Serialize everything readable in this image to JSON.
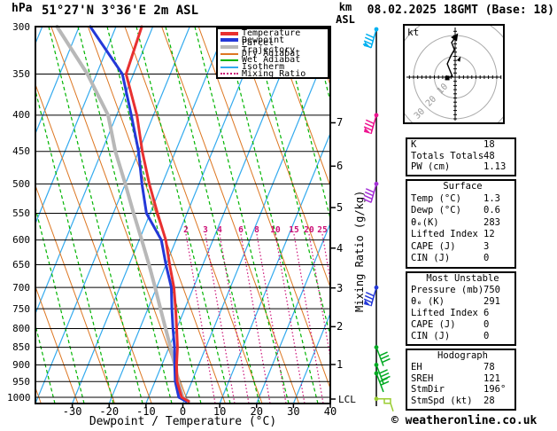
{
  "header": {
    "pressure_unit": "hPa",
    "title": "51°27'N 3°36'E 2m ASL",
    "alt_axis_line1": "km",
    "alt_axis_line2": "ASL",
    "datetime": "08.02.2025 18GMT (Base: 18)"
  },
  "footer": {
    "credit": "© weatheronline.co.uk"
  },
  "colors": {
    "temperature": "#e83030",
    "dewpoint": "#2438d8",
    "parcel": "#b8b8b8",
    "dry_adiabat": "#dd7722",
    "wet_adiabat": "#00b400",
    "isotherm": "#33aaee",
    "mixing_ratio": "#cc1177",
    "grid": "#000000",
    "hodograph_rings": "#aaaaaa"
  },
  "legend": {
    "items": [
      {
        "label": "Temperature",
        "color": "#e83030",
        "style": "thick"
      },
      {
        "label": "Dewpoint",
        "color": "#2438d8",
        "style": "thick"
      },
      {
        "label": "Parcel Trajectory",
        "color": "#b8b8b8",
        "style": "thick"
      },
      {
        "label": "Dry Adiabat",
        "color": "#dd7722",
        "style": "thin"
      },
      {
        "label": "Wet Adiabat",
        "color": "#00b400",
        "style": "thin"
      },
      {
        "label": "Isotherm",
        "color": "#33aaee",
        "style": "thin"
      },
      {
        "label": "Mixing Ratio",
        "color": "#cc1177",
        "style": "dots"
      }
    ]
  },
  "chart_data": {
    "type": "line",
    "title": "51°27'N 3°36'E 2m ASL skew-T log-P sounding",
    "x_axis": {
      "label": "Dewpoint / Temperature (°C)",
      "range": [
        -40,
        40
      ],
      "ticks": [
        -30,
        -20,
        -10,
        0,
        10,
        20,
        30,
        40
      ]
    },
    "y_axis": {
      "label": "hPa",
      "scale": "log",
      "ticks": [
        300,
        350,
        400,
        450,
        500,
        550,
        600,
        650,
        700,
        750,
        800,
        850,
        900,
        950,
        1000
      ]
    },
    "y2_axis": {
      "label": "Mixing Ratio (g/kg)",
      "km_ticks": [
        7,
        6,
        5,
        4,
        3,
        2,
        1
      ],
      "lcl_label": "LCL"
    },
    "mixing_ratio_values": [
      2,
      3,
      4,
      6,
      8,
      10,
      15,
      20,
      25
    ],
    "series": [
      {
        "name": "Temperature",
        "color": "#e83030",
        "width": 3,
        "pressure": [
          300,
          350,
          400,
          450,
          500,
          550,
          600,
          650,
          700,
          750,
          800,
          850,
          900,
          950,
          1000,
          1013
        ],
        "temp_c": [
          -53,
          -52,
          -44.5,
          -39,
          -33.5,
          -28,
          -22.8,
          -19,
          -15.3,
          -12.5,
          -10,
          -7.7,
          -6,
          -4,
          -1,
          1.3
        ]
      },
      {
        "name": "Dewpoint",
        "color": "#2438d8",
        "width": 3,
        "pressure": [
          300,
          350,
          400,
          450,
          500,
          550,
          600,
          650,
          700,
          750,
          800,
          850,
          900,
          950,
          1000,
          1013
        ],
        "temp_c": [
          -67,
          -53,
          -46,
          -40,
          -35.5,
          -31,
          -24,
          -20,
          -16,
          -13.5,
          -11,
          -8.5,
          -6.5,
          -4.5,
          -1.8,
          0.6
        ]
      },
      {
        "name": "Parcel Trajectory",
        "color": "#b8b8b8",
        "width": 4,
        "pressure": [
          300,
          350,
          400,
          450,
          500,
          550,
          600,
          650,
          700,
          750,
          800,
          850,
          900,
          950,
          1000,
          1013
        ],
        "temp_c": [
          -76,
          -62.5,
          -52.3,
          -46.3,
          -40,
          -34.5,
          -29.3,
          -24.6,
          -20.4,
          -16.6,
          -13,
          -9.6,
          -6.5,
          -3.7,
          -0.7,
          1.3
        ]
      }
    ]
  },
  "wind_barbs": [
    {
      "level_hpa": 300,
      "color": "#00b0f0",
      "feathers": 4,
      "side": "left",
      "pennant": true
    },
    {
      "level_hpa": 400,
      "color": "#ee1490",
      "feathers": 3,
      "side": "left",
      "pennant": true
    },
    {
      "level_hpa": 500,
      "color": "#a431d6",
      "feathers": 4,
      "side": "left",
      "pennant": false
    },
    {
      "level_hpa": 700,
      "color": "#2438d8",
      "feathers": 3,
      "side": "left",
      "pennant": true
    },
    {
      "level_hpa": 850,
      "color": "#00aa22",
      "feathers": 3,
      "side": "right",
      "pennant": false
    },
    {
      "level_hpa": 900,
      "color": "#00aa22",
      "feathers": 3,
      "side": "right",
      "pennant": false
    },
    {
      "level_hpa": 925,
      "color": "#00aa22",
      "feathers": 2,
      "side": "right",
      "pennant": false
    },
    {
      "level_hpa": 1005,
      "color": "#9acd32",
      "feathers": 1,
      "side": "right",
      "pennant": false,
      "style": "hook"
    }
  ],
  "hodograph": {
    "unit_label": "kt",
    "ring_values_kt": [
      10,
      20,
      30
    ],
    "ring_labels": [
      "10",
      "20",
      "30"
    ],
    "trace_uv_kt": [
      [
        -3.8,
        -0.4
      ],
      [
        -1.3,
        0.4
      ],
      [
        -2.6,
        3.4
      ],
      [
        -3.8,
        6.4
      ],
      [
        -2.1,
        10.2
      ],
      [
        -0.4,
        13.2
      ],
      [
        -1.7,
        16.6
      ],
      [
        0.4,
        19.6
      ]
    ],
    "mid_arrow_uv_kt": [
      2.1,
      8.9
    ]
  },
  "stats_panel": {
    "boxes": [
      {
        "header": "",
        "rows": [
          {
            "label": "K",
            "value": "18"
          },
          {
            "label": "Totals Totals",
            "value": "48"
          },
          {
            "label": "PW (cm)",
            "value": "1.13"
          }
        ]
      },
      {
        "header": "Surface",
        "rows": [
          {
            "label": "Temp (°C)",
            "value": "1.3"
          },
          {
            "label": "Dewp (°C)",
            "value": "0.6"
          },
          {
            "label": "θₑ(K)",
            "value": "283"
          },
          {
            "label": "Lifted Index",
            "value": "12"
          },
          {
            "label": "CAPE (J)",
            "value": "3"
          },
          {
            "label": "CIN (J)",
            "value": "0"
          }
        ]
      },
      {
        "header": "Most Unstable",
        "rows": [
          {
            "label": "Pressure (mb)",
            "value": "750"
          },
          {
            "label": "θₑ (K)",
            "value": "291"
          },
          {
            "label": "Lifted Index",
            "value": "6"
          },
          {
            "label": "CAPE (J)",
            "value": "0"
          },
          {
            "label": "CIN (J)",
            "value": "0"
          }
        ]
      },
      {
        "header": "Hodograph",
        "rows": [
          {
            "label": "EH",
            "value": "78"
          },
          {
            "label": "SREH",
            "value": "121"
          },
          {
            "label": "StmDir",
            "value": "196°"
          },
          {
            "label": "StmSpd (kt)",
            "value": "28"
          }
        ]
      }
    ]
  }
}
